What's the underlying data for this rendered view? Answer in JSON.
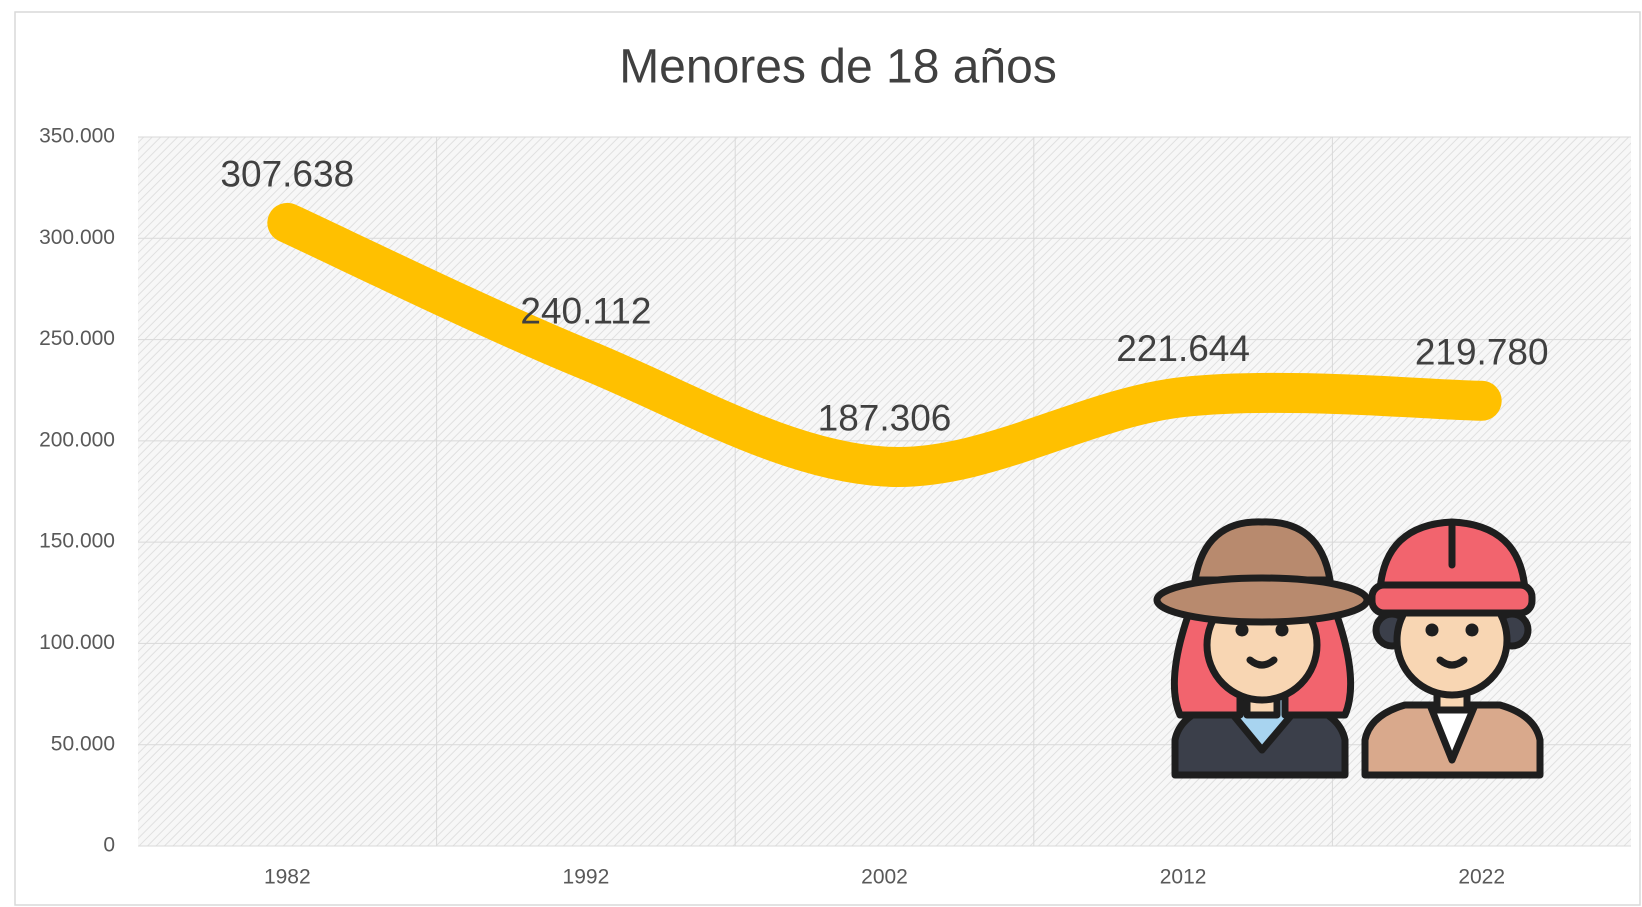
{
  "chart_data": {
    "type": "line",
    "title": "Menores de 18 años",
    "categories": [
      "1982",
      "1992",
      "2002",
      "2012",
      "2022"
    ],
    "values": [
      307638,
      240112,
      187306,
      221644,
      219780
    ],
    "value_labels": [
      "307.638",
      "240.112",
      "187.306",
      "221.644",
      "219.780"
    ],
    "color": "#ffc000",
    "smooth": true,
    "grid": true,
    "ylim": [
      0,
      350000
    ],
    "yticks": [
      0,
      {
        "value": 50000,
        "label": "50.000"
      },
      {
        "value": 100000,
        "label": "100.000"
      },
      {
        "value": 150000,
        "label": "150.000"
      },
      {
        "value": 200000,
        "label": "200.000"
      },
      {
        "value": 250000,
        "label": "250.000"
      },
      {
        "value": 300000,
        "label": "300.000"
      },
      {
        "value": 350000,
        "label": "350.000"
      }
    ]
  }
}
